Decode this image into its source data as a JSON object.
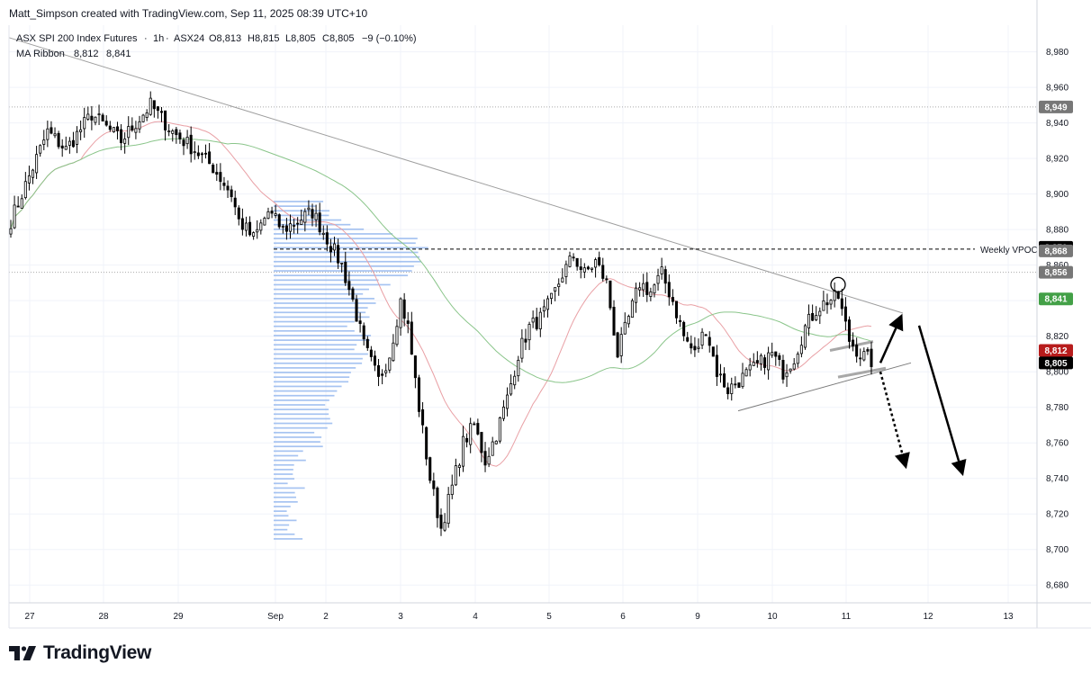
{
  "attribution": "Matt_Simpson created with TradingView.com, Sep 11, 2025 08:39 UTC+10",
  "brand": {
    "logo_icon": "tradingview-logo-icon",
    "name": "TradingView"
  },
  "chart_data": {
    "type": "candlestick",
    "instrument": "ASX SPI 200 Index Futures",
    "timeframe": "1h",
    "exchange": "ASX24",
    "ohlc_legend": {
      "open": "O8,813",
      "high": "H8,815",
      "low": "L8,805",
      "close": "C8,805",
      "change": "−9 (−0.10%)"
    },
    "indicator": {
      "name": "MA Ribbon",
      "fast": "8,812",
      "slow": "8,841",
      "fast_color": "#c2185b",
      "slow_color": "#388e3c"
    },
    "colors": {
      "up": "#ffffff",
      "down": "#000000",
      "wick": "#000000",
      "ma_fast": "#e9a0a5",
      "ma_slow": "#8ac58a",
      "volume_profile": "#90b4ee",
      "trendline": "#9e9e9e"
    },
    "ylim": [
      8670,
      8995
    ],
    "y_ticks": [
      8680,
      8700,
      8720,
      8740,
      8760,
      8780,
      8800,
      8820,
      8840,
      8860,
      8880,
      8900,
      8920,
      8940,
      8960,
      8980
    ],
    "y_tick_labels": [
      "8,680",
      "8,700",
      "8,720",
      "8,740",
      "8,760",
      "8,780",
      "8,800",
      "8,820",
      "8,840",
      "8,860",
      "8,880",
      "8,900",
      "8,920",
      "8,940",
      "8,960",
      "8,980"
    ],
    "x_ticks": [
      "27",
      "28",
      "29",
      "Sep",
      "2",
      "3",
      "4",
      "5",
      "6",
      "9",
      "10",
      "11",
      "12",
      "13"
    ],
    "price_badges": [
      {
        "label": "8,949",
        "value": 8949,
        "bg": "#777777",
        "fg": "#ffffff"
      },
      {
        "label": "8,870",
        "value": 8870,
        "bg": "#000000",
        "fg": "#ffffff"
      },
      {
        "label": "8,868",
        "value": 8868,
        "bg": "#777777",
        "fg": "#ffffff"
      },
      {
        "label": "8,856",
        "value": 8856,
        "bg": "#777777",
        "fg": "#ffffff"
      },
      {
        "label": "8,841",
        "value": 8841,
        "bg": "#43a047",
        "fg": "#ffffff"
      },
      {
        "label": "8,812",
        "value": 8812,
        "bg": "#b71c1c",
        "fg": "#ffffff"
      },
      {
        "label": "8,805",
        "value": 8805,
        "bg": "#000000",
        "fg": "#ffffff"
      }
    ],
    "annotations": {
      "weekly_vpoc_label": "Weekly VPOC",
      "weekly_vpoc_value": 8869
    },
    "price_path_anchors": [
      [
        0,
        8885
      ],
      [
        4,
        8905
      ],
      [
        10,
        8935
      ],
      [
        15,
        8925
      ],
      [
        22,
        8945
      ],
      [
        30,
        8930
      ],
      [
        38,
        8950
      ],
      [
        44,
        8935
      ],
      [
        50,
        8925
      ],
      [
        55,
        8915
      ],
      [
        60,
        8900
      ],
      [
        62,
        8885
      ],
      [
        66,
        8875
      ],
      [
        70,
        8890
      ],
      [
        74,
        8880
      ],
      [
        78,
        8885
      ],
      [
        82,
        8890
      ],
      [
        86,
        8875
      ],
      [
        90,
        8860
      ],
      [
        93,
        8840
      ],
      [
        96,
        8815
      ],
      [
        100,
        8795
      ],
      [
        103,
        8810
      ],
      [
        106,
        8840
      ],
      [
        108,
        8825
      ],
      [
        111,
        8780
      ],
      [
        114,
        8740
      ],
      [
        117,
        8712
      ],
      [
        120,
        8735
      ],
      [
        123,
        8760
      ],
      [
        126,
        8770
      ],
      [
        129,
        8750
      ],
      [
        132,
        8765
      ],
      [
        135,
        8785
      ],
      [
        138,
        8810
      ],
      [
        141,
        8825
      ],
      [
        144,
        8830
      ],
      [
        147,
        8840
      ],
      [
        150,
        8855
      ],
      [
        153,
        8865
      ],
      [
        156,
        8855
      ],
      [
        159,
        8862
      ],
      [
        162,
        8850
      ],
      [
        165,
        8810
      ],
      [
        168,
        8830
      ],
      [
        171,
        8850
      ],
      [
        174,
        8845
      ],
      [
        177,
        8855
      ],
      [
        180,
        8840
      ],
      [
        183,
        8820
      ],
      [
        186,
        8810
      ],
      [
        189,
        8825
      ],
      [
        192,
        8800
      ],
      [
        195,
        8790
      ],
      [
        198,
        8795
      ],
      [
        201,
        8800
      ],
      [
        204,
        8805
      ],
      [
        207,
        8810
      ],
      [
        210,
        8800
      ],
      [
        213,
        8808
      ],
      [
        216,
        8825
      ],
      [
        219,
        8835
      ],
      [
        222,
        8840
      ],
      [
        225,
        8842
      ],
      [
        228,
        8818
      ],
      [
        231,
        8810
      ],
      [
        234,
        8806
      ]
    ]
  }
}
